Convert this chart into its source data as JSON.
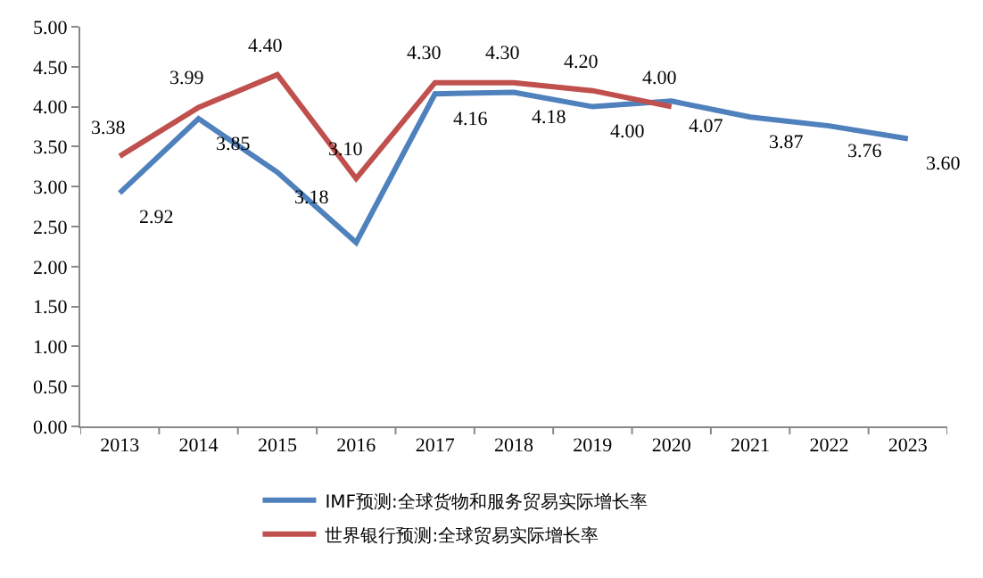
{
  "chart_data": {
    "type": "line",
    "categories": [
      "2013",
      "2014",
      "2015",
      "2016",
      "2017",
      "2018",
      "2019",
      "2020",
      "2021",
      "2022",
      "2023"
    ],
    "series": [
      {
        "name": "IMF预测:全球货物和服务贸易实际增长率",
        "color": "#4f81bd",
        "values": [
          2.92,
          3.85,
          3.18,
          2.3,
          4.16,
          4.18,
          4.0,
          4.07,
          3.87,
          3.76,
          3.6
        ],
        "value_labels": [
          "2.92",
          "3.85",
          "3.18",
          null,
          "4.16",
          "4.18",
          "4.00",
          "4.07",
          "3.87",
          "3.76",
          "3.60"
        ]
      },
      {
        "name": "世界银行预测:全球贸易实际增长率",
        "color": "#c0504d",
        "values": [
          3.38,
          3.99,
          4.4,
          3.1,
          4.3,
          4.3,
          4.2,
          4.0,
          null,
          null,
          null
        ],
        "value_labels": [
          "3.38",
          "3.99",
          "4.40",
          "3.10",
          "4.30",
          "4.30",
          "4.20",
          "4.00",
          null,
          null,
          null
        ]
      }
    ],
    "ylim": [
      0,
      5
    ],
    "yticks": [
      {
        "value": 0,
        "label": "0.00"
      },
      {
        "value": 0.5,
        "label": "0.50"
      },
      {
        "value": 1,
        "label": "1.00"
      },
      {
        "value": 1.5,
        "label": "1.50"
      },
      {
        "value": 2,
        "label": "2.00"
      },
      {
        "value": 2.5,
        "label": "2.50"
      },
      {
        "value": 3,
        "label": "3.00"
      },
      {
        "value": 3.5,
        "label": "3.50"
      },
      {
        "value": 4,
        "label": "4.00"
      },
      {
        "value": 4.5,
        "label": "4.50"
      },
      {
        "value": 5,
        "label": "5.00"
      }
    ],
    "legend": "bottom",
    "marker": "none",
    "line_style": "solid"
  }
}
